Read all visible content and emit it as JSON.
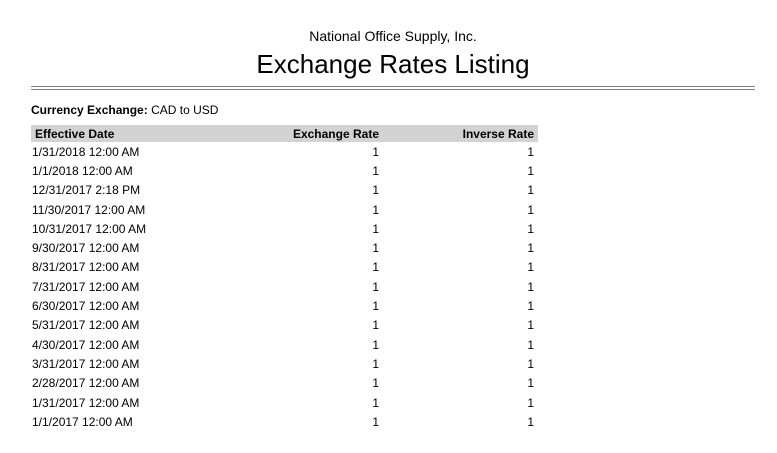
{
  "page": {
    "company_name": "National Office Supply, Inc.",
    "report_title": "Exchange Rates Listing"
  },
  "filter": {
    "label": "Currency Exchange:",
    "value": "CAD to USD"
  },
  "table": {
    "columns": [
      "Effective Date",
      "Exchange Rate",
      "Inverse Rate"
    ],
    "rows": [
      [
        "1/31/2018 12:00 AM",
        "1",
        "1"
      ],
      [
        "1/1/2018 12:00 AM",
        "1",
        "1"
      ],
      [
        "12/31/2017 2:18 PM",
        "1",
        "1"
      ],
      [
        "11/30/2017 12:00 AM",
        "1",
        "1"
      ],
      [
        "10/31/2017 12:00 AM",
        "1",
        "1"
      ],
      [
        "9/30/2017 12:00 AM",
        "1",
        "1"
      ],
      [
        "8/31/2017 12:00 AM",
        "1",
        "1"
      ],
      [
        "7/31/2017 12:00 AM",
        "1",
        "1"
      ],
      [
        "6/30/2017 12:00 AM",
        "1",
        "1"
      ],
      [
        "5/31/2017 12:00 AM",
        "1",
        "1"
      ],
      [
        "4/30/2017 12:00 AM",
        "1",
        "1"
      ],
      [
        "3/31/2017 12:00 AM",
        "1",
        "1"
      ],
      [
        "2/28/2017 12:00 AM",
        "1",
        "1"
      ],
      [
        "1/31/2017 12:00 AM",
        "1",
        "1"
      ],
      [
        "1/1/2017 12:00 AM",
        "1",
        "1"
      ]
    ]
  },
  "colors": {
    "header_background": "#d3d3d3",
    "text": "#000000",
    "rule": "#7f7f7f"
  }
}
